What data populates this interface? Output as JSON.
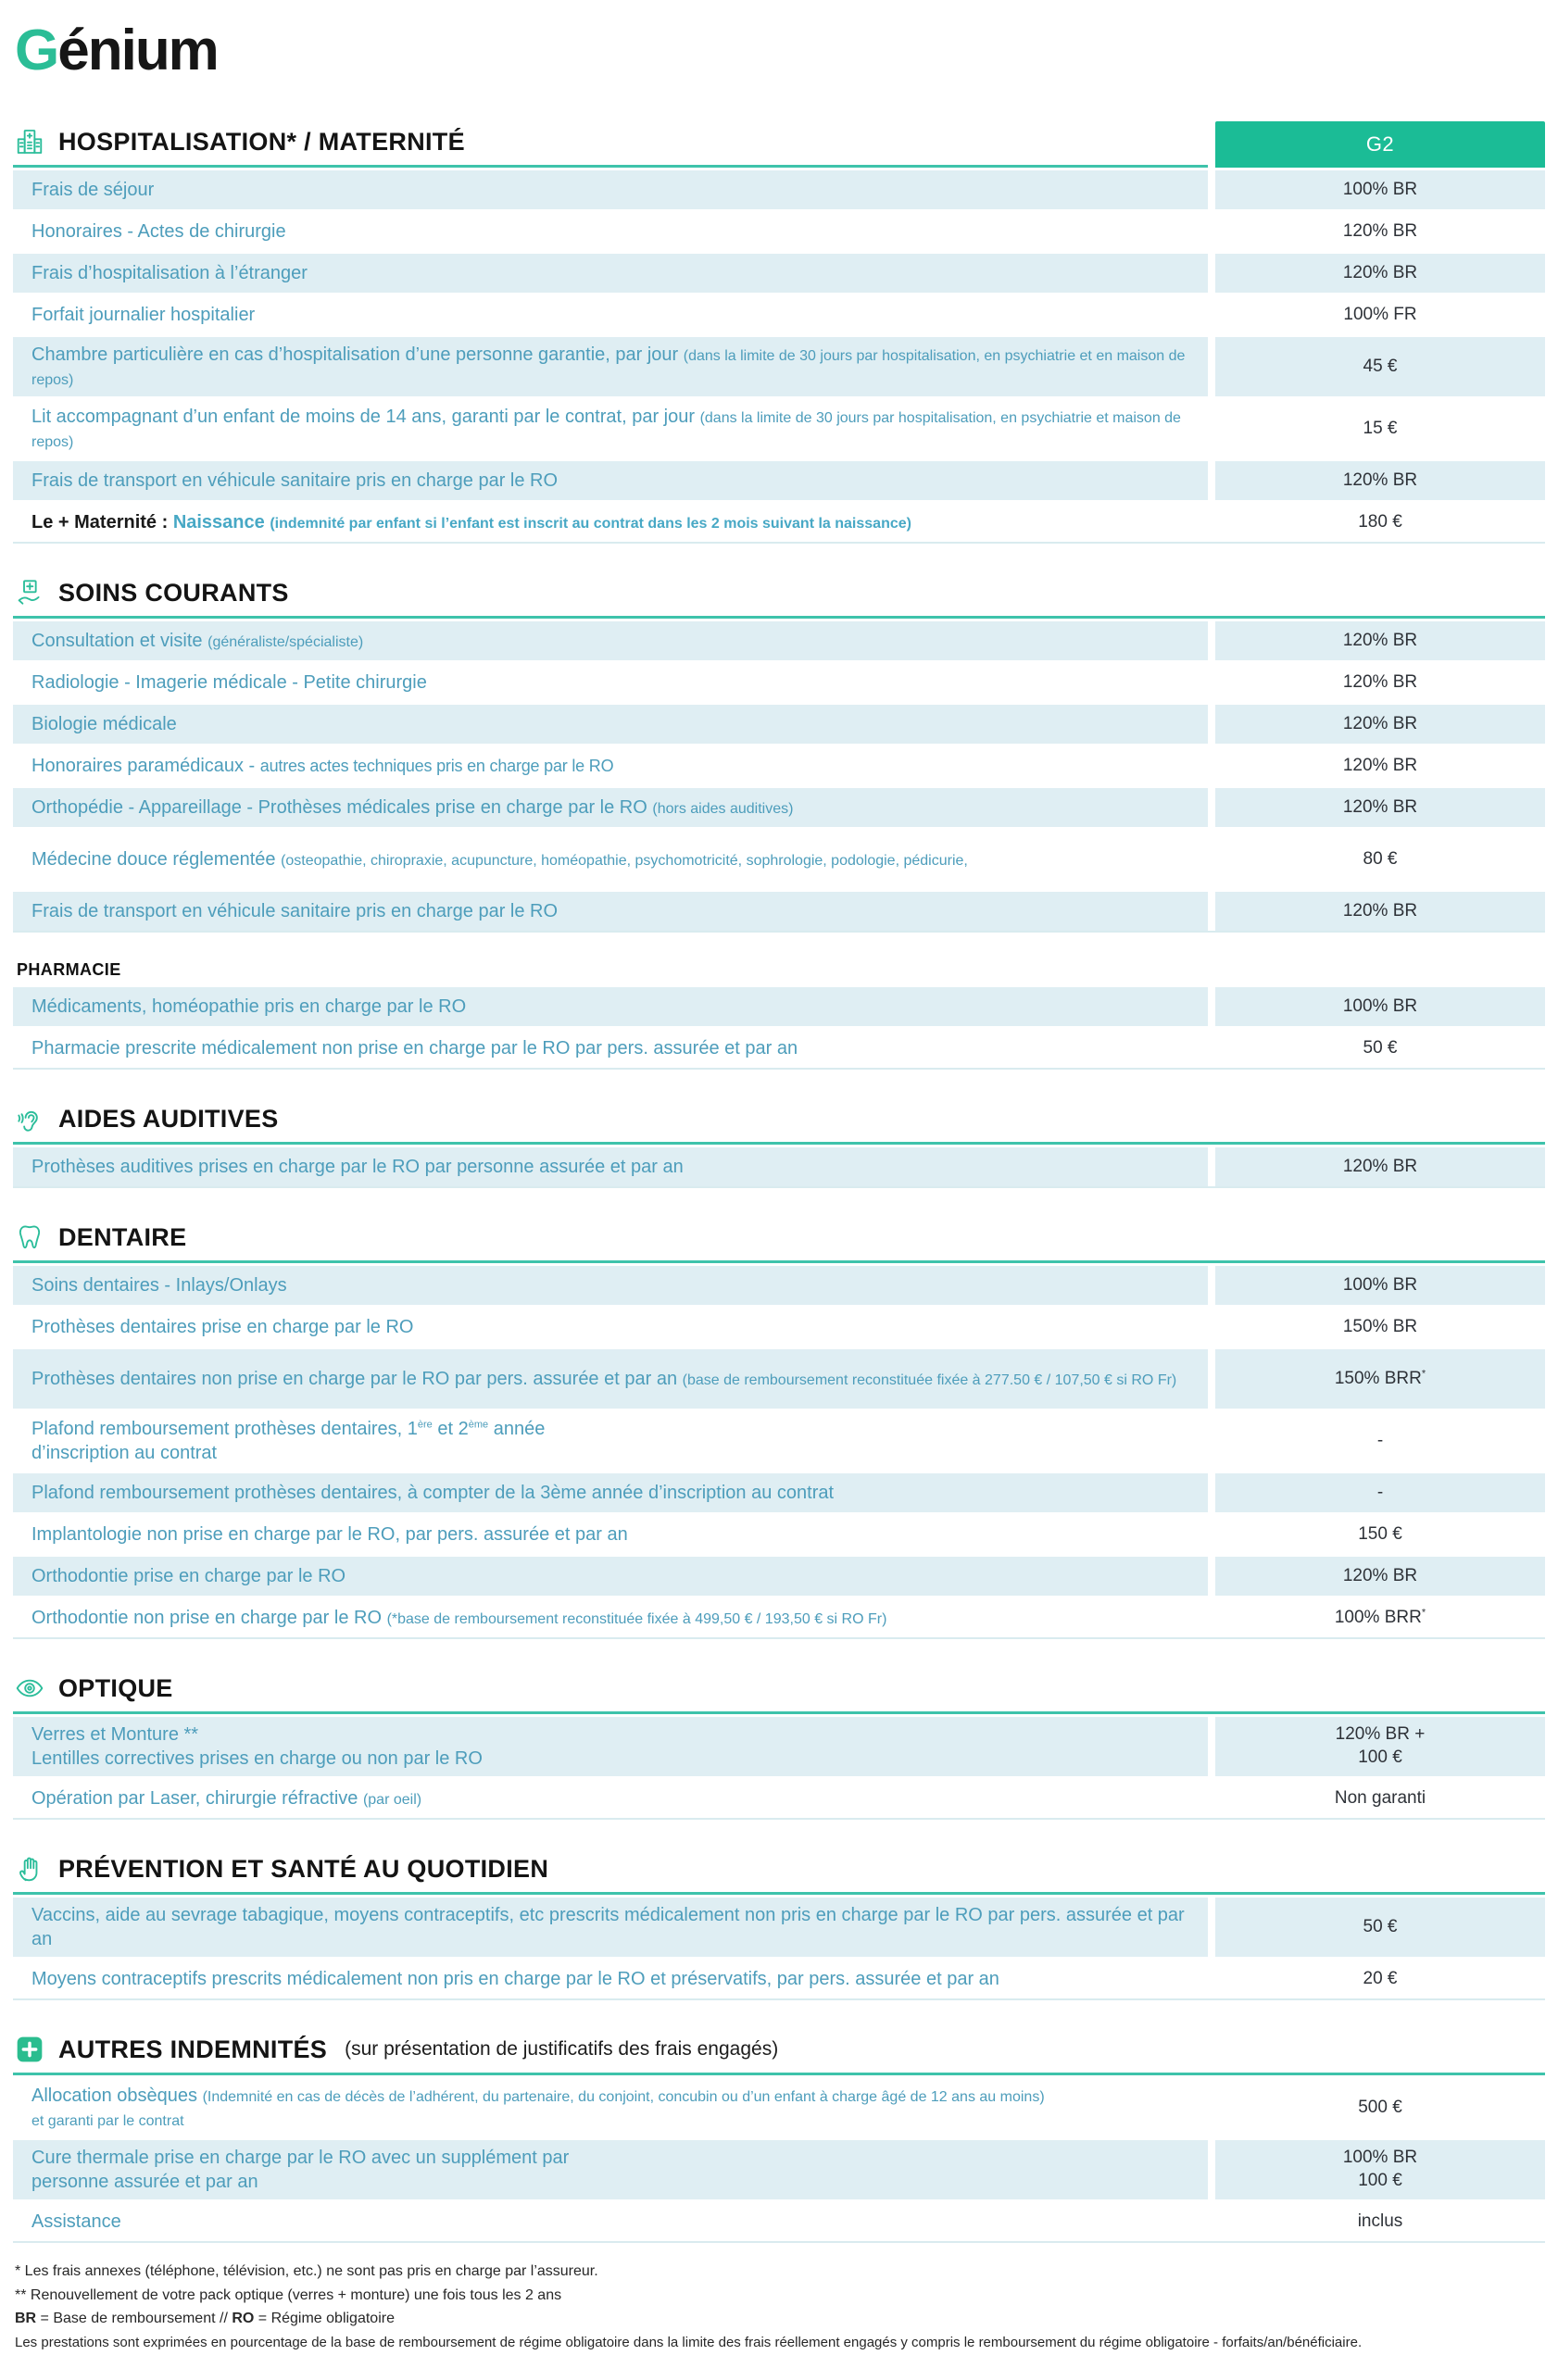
{
  "brand": {
    "logo_g": "G",
    "logo_rest": "énium"
  },
  "plan": {
    "column_header": "G2"
  },
  "colors": {
    "accent_teal": "#1BBC96",
    "underline_teal": "#3EC3AB",
    "row_blue": "#DFEEF3",
    "label_blue": "#4D9DBB",
    "value_dark": "#2E3238"
  },
  "sections": [
    {
      "id": "hospitalisation",
      "icon": "hospital-icon",
      "title": "HOSPITALISATION* / MATERNITÉ",
      "plan_header": true,
      "rows": [
        {
          "shade": true,
          "value": "100% BR",
          "label": [
            {
              "t": "Frais de séjour"
            }
          ]
        },
        {
          "shade": false,
          "value": "120% BR",
          "label": [
            {
              "t": "Honoraires - Actes de chirurgie"
            }
          ]
        },
        {
          "shade": true,
          "value": "120% BR",
          "label": [
            {
              "t": "Frais d’hospitalisation à l’étranger"
            }
          ]
        },
        {
          "shade": false,
          "value": "100% FR",
          "label": [
            {
              "t": "Forfait journalier hospitalier"
            }
          ]
        },
        {
          "shade": true,
          "tall": true,
          "value": "45 €",
          "label": [
            {
              "t": "Chambre particulière en cas d’hospitalisation d’une personne garantie, par jour "
            },
            {
              "t": "(dans la limite de 30 jours par hospitalisation, en psychiatrie et en maison de repos)",
              "s": "small"
            }
          ]
        },
        {
          "shade": false,
          "tall": true,
          "value": "15 €",
          "label": [
            {
              "t": "Lit accompagnant d’un enfant de moins de 14 ans, garanti par le contrat, par jour "
            },
            {
              "t": "(dans la limite de 30 jours par hospitalisation, en psychiatrie et maison de repos)",
              "s": "small"
            }
          ]
        },
        {
          "shade": true,
          "value": "120% BR",
          "label": [
            {
              "t": "Frais de transport en véhicule sanitaire pris en charge par le RO"
            }
          ]
        },
        {
          "shade": false,
          "value": "180 €",
          "label": [
            {
              "t": "Le + Maternité  : ",
              "s": "bold-dark"
            },
            {
              "t": "Naissance ",
              "s": "bold-teal"
            },
            {
              "t": "(indemnité par enfant si l’enfant est inscrit au contrat dans les 2 mois suivant la naissance)",
              "s": "bold-teal-small"
            }
          ]
        }
      ]
    },
    {
      "id": "soins-courants",
      "icon": "care-hand-icon",
      "title": "SOINS COURANTS",
      "rows": [
        {
          "shade": true,
          "value": "120% BR",
          "label": [
            {
              "t": "Consultation et visite "
            },
            {
              "t": "(généraliste/spécialiste)",
              "s": "small"
            }
          ]
        },
        {
          "shade": false,
          "value": "120% BR",
          "label": [
            {
              "t": "Radiologie - Imagerie médicale - Petite chirurgie"
            }
          ]
        },
        {
          "shade": true,
          "value": "120% BR",
          "label": [
            {
              "t": "Biologie médicale"
            }
          ]
        },
        {
          "shade": false,
          "value": "120% BR",
          "label": [
            {
              "t": "Honoraires paramédicaux - "
            },
            {
              "t": "autres actes techniques pris en charge par le RO",
              "s": "cond"
            }
          ]
        },
        {
          "shade": true,
          "value": "120% BR",
          "label": [
            {
              "t": "Orthopédie - Appareillage - Prothèses médicales prise en charge par le RO "
            },
            {
              "t": "(hors aides auditives)",
              "s": "small"
            }
          ]
        },
        {
          "shade": false,
          "tall": true,
          "value": "80 €",
          "label": [
            {
              "t": "Médecine douce réglementée "
            },
            {
              "t": "(osteopathie, chiropraxie, acupuncture, homéopathie, psychomotricité, sophrologie, podologie, pédicurie,",
              "s": "small"
            }
          ]
        },
        {
          "shade": true,
          "value": "120% BR",
          "label": [
            {
              "t": "Frais de transport en véhicule sanitaire pris en charge par le RO"
            }
          ]
        }
      ]
    },
    {
      "id": "pharmacie",
      "plain": true,
      "title": "PHARMACIE",
      "rows": [
        {
          "shade": true,
          "value": "100% BR",
          "label": [
            {
              "t": "Médicaments, homéopathie pris en charge par le RO"
            }
          ]
        },
        {
          "shade": false,
          "value": "50 €",
          "label": [
            {
              "t": "Pharmacie prescrite médicalement non prise en charge par le RO par pers. assurée et par an"
            }
          ]
        }
      ]
    },
    {
      "id": "aides-auditives",
      "icon": "ear-icon",
      "title": "AIDES AUDITIVES",
      "rows": [
        {
          "shade": true,
          "value": "120% BR",
          "label": [
            {
              "t": "Prothèses auditives prises en charge par le RO par personne assurée et par an"
            }
          ]
        }
      ]
    },
    {
      "id": "dentaire",
      "icon": "tooth-icon",
      "title": "DENTAIRE",
      "rows": [
        {
          "shade": true,
          "value": "100% BR",
          "label": [
            {
              "t": "Soins dentaires - Inlays/Onlays"
            }
          ]
        },
        {
          "shade": false,
          "value": "150% BR",
          "label": [
            {
              "t": "Prothèses dentaires prise en charge par le RO"
            }
          ]
        },
        {
          "shade": true,
          "tall": true,
          "value": "150% BRR",
          "value_sup": "*",
          "label": [
            {
              "t": "Prothèses dentaires non prise en charge par le RO par pers. assurée et par an "
            },
            {
              "t": "(base de remboursement reconstituée fixée à 277.50 € / 107,50 € si RO Fr)",
              "s": "small"
            }
          ]
        },
        {
          "shade": false,
          "tall": true,
          "value": "-",
          "label": [
            {
              "t": "Plafond remboursement prothèses dentaires, 1"
            },
            {
              "t": "ère",
              "s": "sup"
            },
            {
              "t": " et 2"
            },
            {
              "t": "ème",
              "s": "sup"
            },
            {
              "t": " année\nd’inscription au contrat"
            }
          ]
        },
        {
          "shade": true,
          "value": "-",
          "label": [
            {
              "t": "Plafond remboursement prothèses dentaires, à compter de la 3ème année d’inscription au contrat"
            }
          ]
        },
        {
          "shade": false,
          "value": "150 €",
          "label": [
            {
              "t": "Implantologie non prise en charge par le RO, par pers. assurée et par an"
            }
          ]
        },
        {
          "shade": true,
          "value": "120% BR",
          "label": [
            {
              "t": "Orthodontie prise en charge par le RO"
            }
          ]
        },
        {
          "shade": false,
          "value": "100% BRR",
          "value_sup": "*",
          "label": [
            {
              "t": "Orthodontie non prise en charge par le RO  "
            },
            {
              "t": "(*base de remboursement reconstituée fixée à 499,50 € / 193,50 € si RO Fr)",
              "s": "small"
            }
          ]
        }
      ]
    },
    {
      "id": "optique",
      "icon": "eye-icon",
      "title": "OPTIQUE",
      "rows": [
        {
          "shade": true,
          "tall": true,
          "value": "120% BR +\n100 €",
          "label": [
            {
              "t": "Verres et Monture **\nLentilles correctives prises en charge ou non par le RO"
            }
          ]
        },
        {
          "shade": false,
          "value": "Non garanti",
          "label": [
            {
              "t": "Opération par Laser, chirurgie réfractive "
            },
            {
              "t": "(par oeil)",
              "s": "small"
            }
          ]
        }
      ]
    },
    {
      "id": "prevention",
      "icon": "hand-icon",
      "title": "PRÉVENTION ET SANTÉ AU QUOTIDIEN",
      "rows": [
        {
          "shade": true,
          "tall": true,
          "value": "50 €",
          "label": [
            {
              "t": "Vaccins, aide au sevrage tabagique, moyens contraceptifs, etc prescrits médicalement non pris en charge par le RO par pers. assurée et par an"
            }
          ]
        },
        {
          "shade": false,
          "value": "20 €",
          "label": [
            {
              "t": "Moyens contraceptifs prescrits médicalement non pris en charge par le RO et préservatifs, par pers. assurée et par an"
            }
          ]
        }
      ]
    },
    {
      "id": "autres-indemnites",
      "icon": "plus-icon",
      "title": "AUTRES INDEMNITÉS",
      "title_suffix": "(sur présentation de justificatifs des frais engagés)",
      "rows": [
        {
          "shade": false,
          "tall": true,
          "value": "500 €",
          "label": [
            {
              "t": "Allocation obsèques "
            },
            {
              "t": "(Indemnité en cas de décès de l’adhérent, du partenaire, du conjoint, concubin ou d’un enfant à charge âgé de 12 ans au moins)",
              "s": "small"
            },
            {
              "t": "\n",
              "s": "small"
            },
            {
              "t": "et garanti par le contrat",
              "s": "small"
            }
          ]
        },
        {
          "shade": true,
          "tall": true,
          "value": "100% BR\n100 €",
          "label": [
            {
              "t": "Cure thermale prise en charge par le RO avec un supplément par\npersonne assurée et par an"
            }
          ]
        },
        {
          "shade": false,
          "value": "inclus",
          "label": [
            {
              "t": "Assistance"
            }
          ]
        }
      ]
    }
  ],
  "footnotes": [
    [
      {
        "t": "* Les frais annexes (téléphone, télévision, etc.) ne sont pas pris en charge par l’assureur."
      }
    ],
    [
      {
        "t": "** Renouvellement de votre pack optique (verres + monture) une fois tous les 2 ans"
      }
    ],
    [
      {
        "t": "BR",
        "s": "b"
      },
      {
        "t": " = Base de remboursement // "
      },
      {
        "t": "RO",
        "s": "b"
      },
      {
        "t": " = Régime obligatoire"
      }
    ],
    [
      {
        "t": "Les prestations sont exprimées en pourcentage de la base de remboursement de régime obligatoire dans la limite des frais réellement engagés y compris le remboursement du régime obligatoire  - forfaits/an/bénéficiaire.",
        "s": "tiny"
      }
    ]
  ]
}
